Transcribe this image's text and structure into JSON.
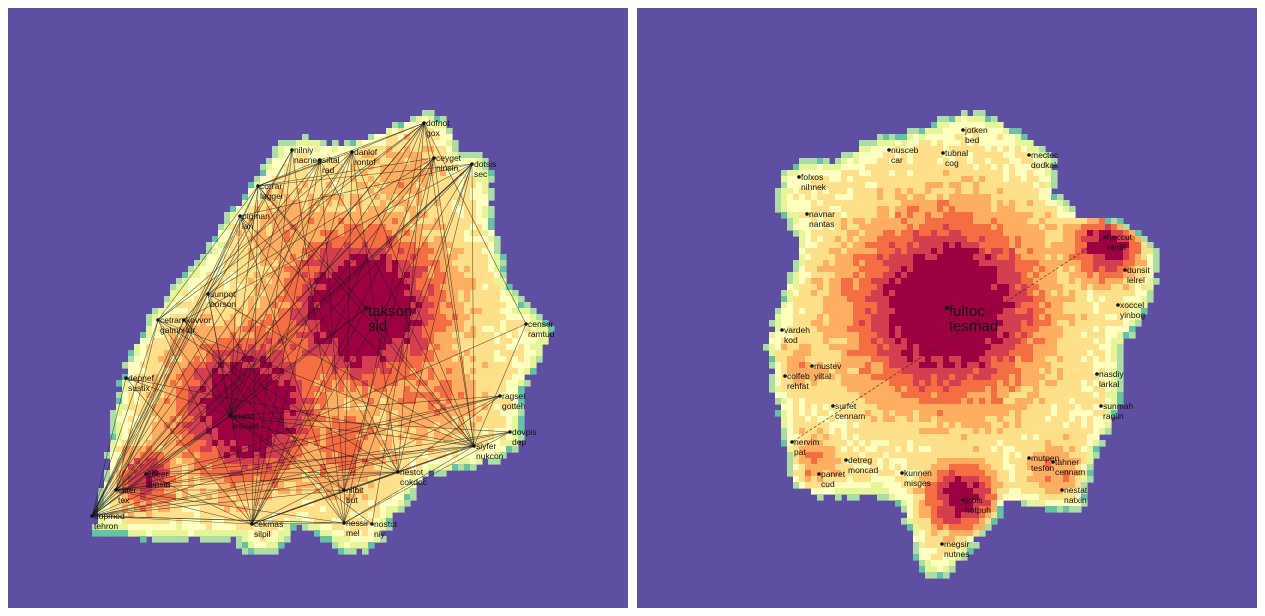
{
  "colors": {
    "background": "#5e4fa2",
    "ramp": [
      "#66c2a5",
      "#abdda4",
      "#e6f598",
      "#ffffbf",
      "#fee08b",
      "#fdae61",
      "#f46d43",
      "#d53e4f",
      "#9e0142"
    ],
    "edge": "#1a1a1a",
    "node": "#111111"
  },
  "left_map": {
    "nodes": [
      {
        "id": "dofnot",
        "l1": "dofnot",
        "l2": "gox"
      },
      {
        "id": "dotsis",
        "l1": "dotsis",
        "l2": "sec"
      },
      {
        "id": "ceyget",
        "l1": "ceyget",
        "l2": "ninsin"
      },
      {
        "id": "danlof",
        "l1": "danlof",
        "l2": "rontof"
      },
      {
        "id": "siftal",
        "l1": "siftal",
        "l2": "rad"
      },
      {
        "id": "nilniy",
        "l1": "nilniy",
        "l2": "nacneg"
      },
      {
        "id": "corrar",
        "l1": "corrar",
        "l2": "lagger"
      },
      {
        "id": "pigman",
        "l1": "pigman",
        "l2": "lan"
      },
      {
        "id": "sunpot",
        "l1": "sunpot",
        "l2": "borson"
      },
      {
        "id": "cetran",
        "l1": "cetran",
        "l2": "galmix"
      },
      {
        "id": "kovvor",
        "l1": "kovvor",
        "l2": "lur"
      },
      {
        "id": "takson",
        "l1": "takson",
        "l2": "sid",
        "big": true
      },
      {
        "id": "censer",
        "l1": "censer",
        "l2": "ramtud"
      },
      {
        "id": "depnef",
        "l1": "depnef",
        "l2": "sustix"
      },
      {
        "id": "ragset",
        "l1": "ragset",
        "l2": "gotteh"
      },
      {
        "id": "dovpis",
        "l1": "dovpis",
        "l2": "dep"
      },
      {
        "id": "jelabd",
        "l1": "jelabd",
        "l2": "lirsised"
      },
      {
        "id": "siyfer",
        "l1": "siyfer",
        "l2": "nukcon"
      },
      {
        "id": "jiceer",
        "l1": "jiceer",
        "l2": "ninsin"
      },
      {
        "id": "nestot",
        "l1": "nestot",
        "l2": "cokdoc"
      },
      {
        "id": "citter",
        "l1": "citter",
        "l2": "tex"
      },
      {
        "id": "nilbit",
        "l1": "nilbit",
        "l2": "but"
      },
      {
        "id": "dopmed",
        "l1": "dopmed",
        "l2": "tehron"
      },
      {
        "id": "cekmas",
        "l1": "cekmas",
        "l2": "silpil"
      },
      {
        "id": "nessir",
        "l1": "nessir",
        "l2": "mel"
      },
      {
        "id": "nostut",
        "l1": "nostut",
        "l2": "niy"
      }
    ],
    "edges": [
      [
        "dofnot",
        "corrar"
      ],
      [
        "dofnot",
        "sunpot"
      ],
      [
        "dofnot",
        "cetran"
      ],
      [
        "dofnot",
        "jelabd"
      ],
      [
        "dofnot",
        "citter"
      ],
      [
        "dofnot",
        "dopmed"
      ],
      [
        "dofnot",
        "cekmas"
      ],
      [
        "dofnot",
        "nessir"
      ],
      [
        "dofnot",
        "siyfer"
      ],
      [
        "dofnot",
        "nestot"
      ],
      [
        "dofnot",
        "danlof"
      ],
      [
        "dofnot",
        "ceyget"
      ],
      [
        "dotsis",
        "corrar"
      ],
      [
        "dotsis",
        "pigman"
      ],
      [
        "dotsis",
        "kovvor"
      ],
      [
        "dotsis",
        "jelabd"
      ],
      [
        "dotsis",
        "jiceer"
      ],
      [
        "dotsis",
        "citter"
      ],
      [
        "dotsis",
        "dopmed"
      ],
      [
        "dotsis",
        "cekmas"
      ],
      [
        "dotsis",
        "nilbit"
      ],
      [
        "dotsis",
        "siyfer"
      ],
      [
        "dotsis",
        "nestot"
      ],
      [
        "dotsis",
        "nessir"
      ],
      [
        "ceyget",
        "corrar"
      ],
      [
        "ceyget",
        "sunpot"
      ],
      [
        "ceyget",
        "jelabd"
      ],
      [
        "ceyget",
        "dopmed"
      ],
      [
        "ceyget",
        "cekmas"
      ],
      [
        "ceyget",
        "siyfer"
      ],
      [
        "ceyget",
        "nilbit"
      ],
      [
        "ceyget",
        "citter"
      ],
      [
        "ceyget",
        "nostut"
      ],
      [
        "danlof",
        "corrar"
      ],
      [
        "danlof",
        "cetran"
      ],
      [
        "danlof",
        "jelabd"
      ],
      [
        "danlof",
        "dopmed"
      ],
      [
        "danlof",
        "cekmas"
      ],
      [
        "danlof",
        "nessir"
      ],
      [
        "danlof",
        "siyfer"
      ],
      [
        "danlof",
        "jiceer"
      ],
      [
        "danlof",
        "nestot"
      ],
      [
        "siftal",
        "corrar"
      ],
      [
        "siftal",
        "kovvor"
      ],
      [
        "siftal",
        "jelabd"
      ],
      [
        "siftal",
        "dopmed"
      ],
      [
        "siftal",
        "cekmas"
      ],
      [
        "siftal",
        "nilbit"
      ],
      [
        "siftal",
        "siyfer"
      ],
      [
        "nilniy",
        "sunpot"
      ],
      [
        "nilniy",
        "dopmed"
      ],
      [
        "nilniy",
        "jelabd"
      ],
      [
        "nilniy",
        "cekmas"
      ],
      [
        "nilniy",
        "nessir"
      ],
      [
        "corrar",
        "jelabd"
      ],
      [
        "corrar",
        "dopmed"
      ],
      [
        "corrar",
        "cetran"
      ],
      [
        "corrar",
        "nestot"
      ],
      [
        "corrar",
        "siyfer"
      ],
      [
        "corrar",
        "cekmas"
      ],
      [
        "corrar",
        "citter"
      ],
      [
        "pigman",
        "dopmed"
      ],
      [
        "pigman",
        "jelabd"
      ],
      [
        "pigman",
        "nestot"
      ],
      [
        "pigman",
        "nessir"
      ],
      [
        "pigman",
        "citter"
      ],
      [
        "pigman",
        "siyfer"
      ],
      [
        "sunpot",
        "dopmed"
      ],
      [
        "sunpot",
        "jelabd"
      ],
      [
        "sunpot",
        "nessir"
      ],
      [
        "sunpot",
        "siyfer"
      ],
      [
        "sunpot",
        "cekmas"
      ],
      [
        "cetran",
        "dopmed"
      ],
      [
        "cetran",
        "jelabd"
      ],
      [
        "cetran",
        "siyfer"
      ],
      [
        "cetran",
        "cekmas"
      ],
      [
        "cetran",
        "nestot"
      ],
      [
        "cetran",
        "citter"
      ],
      [
        "kovvor",
        "dopmed"
      ],
      [
        "kovvor",
        "jelabd"
      ],
      [
        "kovvor",
        "nessir"
      ],
      [
        "kovvor",
        "nilbit"
      ],
      [
        "kovvor",
        "citter"
      ],
      [
        "depnef",
        "dopmed"
      ],
      [
        "depnef",
        "jelabd"
      ],
      [
        "depnef",
        "cekmas"
      ],
      [
        "depnef",
        "siyfer"
      ],
      [
        "ragset",
        "dopmed"
      ],
      [
        "ragset",
        "jelabd"
      ],
      [
        "ragset",
        "citter"
      ],
      [
        "ragset",
        "cekmas"
      ],
      [
        "ragset",
        "nestot"
      ],
      [
        "ragset",
        "jiceer"
      ],
      [
        "dovpis",
        "dopmed"
      ],
      [
        "dovpis",
        "citter"
      ],
      [
        "dovpis",
        "cekmas"
      ],
      [
        "dovpis",
        "jelabd"
      ],
      [
        "dovpis",
        "nessir"
      ],
      [
        "siyfer",
        "dopmed"
      ],
      [
        "siyfer",
        "citter"
      ],
      [
        "siyfer",
        "jiceer"
      ],
      [
        "siyfer",
        "cekmas"
      ],
      [
        "siyfer",
        "nessir"
      ],
      [
        "siyfer",
        "nilbit"
      ],
      [
        "siyfer",
        "jelabd"
      ],
      [
        "nestot",
        "dopmed"
      ],
      [
        "nestot",
        "citter"
      ],
      [
        "nestot",
        "jiceer"
      ],
      [
        "nestot",
        "cekmas"
      ],
      [
        "nestot",
        "jelabd"
      ],
      [
        "nilbit",
        "dopmed"
      ],
      [
        "nilbit",
        "citter"
      ],
      [
        "nilbit",
        "cekmas"
      ],
      [
        "nilbit",
        "jelabd"
      ],
      [
        "cekmas",
        "dopmed"
      ],
      [
        "cekmas",
        "citter"
      ],
      [
        "cekmas",
        "jiceer"
      ],
      [
        "cekmas",
        "nessir"
      ],
      [
        "nessir",
        "dopmed"
      ],
      [
        "nessir",
        "citter"
      ],
      [
        "nostut",
        "dopmed"
      ],
      [
        "nostut",
        "jelabd"
      ],
      [
        "jelabd",
        "dopmed"
      ],
      [
        "jelabd",
        "citter"
      ],
      [
        "jelabd",
        "jiceer"
      ],
      [
        "jiceer",
        "dopmed"
      ],
      [
        "citter",
        "dopmed"
      ],
      [
        "takson",
        "dopmed"
      ],
      [
        "takson",
        "jelabd"
      ],
      [
        "takson",
        "corrar"
      ],
      [
        "takson",
        "siyfer"
      ],
      [
        "takson",
        "cekmas"
      ],
      [
        "censer",
        "siyfer"
      ],
      [
        "censer",
        "dofnot"
      ],
      [
        "censer",
        "dopmed"
      ]
    ]
  },
  "right_map": {
    "nodes": [
      {
        "id": "jotken",
        "l1": "jotken",
        "l2": "bed"
      },
      {
        "id": "nusceb",
        "l1": "nusceb",
        "l2": "car"
      },
      {
        "id": "tubnal",
        "l1": "tubnal",
        "l2": "cog"
      },
      {
        "id": "mectec",
        "l1": "mectec",
        "l2": "dodkak"
      },
      {
        "id": "folxos",
        "l1": "folxos",
        "l2": "nihnek"
      },
      {
        "id": "navnar",
        "l1": "navnar",
        "l2": "nantas"
      },
      {
        "id": "heccut",
        "l1": "heccut",
        "l2": "rardil"
      },
      {
        "id": "dunsit",
        "l1": "dunsit",
        "l2": "lelrel"
      },
      {
        "id": "fultoc",
        "l1": "fultoc",
        "l2": "tesmad",
        "big": true
      },
      {
        "id": "xoccel",
        "l1": "xoccel",
        "l2": "yinbog"
      },
      {
        "id": "vardeh",
        "l1": "vardeh",
        "l2": "kod"
      },
      {
        "id": "mustev",
        "l1": "mustev",
        "l2": "yiltal"
      },
      {
        "id": "nasdiy",
        "l1": "nasdiy",
        "l2": "larkal"
      },
      {
        "id": "colfeb",
        "l1": "colfeb",
        "l2": "rehfat"
      },
      {
        "id": "sunmah",
        "l1": "sunmah",
        "l2": "raglin"
      },
      {
        "id": "surfet",
        "l1": "surfet",
        "l2": "cennam"
      },
      {
        "id": "nervim",
        "l1": "nervim",
        "l2": "pat"
      },
      {
        "id": "detreg",
        "l1": "detreg",
        "l2": "moncad"
      },
      {
        "id": "mutpen",
        "l1": "mutpen",
        "l2": "tesfon"
      },
      {
        "id": "tahner",
        "l1": "tahner",
        "l2": "cennam"
      },
      {
        "id": "panret",
        "l1": "panret",
        "l2": "cud"
      },
      {
        "id": "kunnen",
        "l1": "kunnen",
        "l2": "misges"
      },
      {
        "id": "nestat",
        "l1": "nestat",
        "l2": "natxin"
      },
      {
        "id": "jirbis",
        "l1": "jirbis",
        "l2": "hotpuh"
      },
      {
        "id": "megsir",
        "l1": "megsir",
        "l2": "nutnes"
      }
    ],
    "edges": [
      [
        "heccut",
        "nervim"
      ]
    ]
  }
}
